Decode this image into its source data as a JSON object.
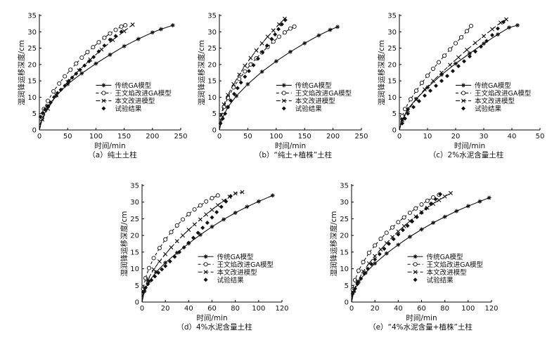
{
  "chart_data": [
    {
      "type": "line",
      "caption": "（a）纯土土柱",
      "xlabel": "时间/min",
      "ylabel": "湿润锋运移深度/cm",
      "xlim": [
        0,
        250
      ],
      "ylim": [
        0,
        35
      ],
      "xticks": [
        0,
        50,
        100,
        150,
        200,
        250
      ],
      "yticks": [
        0,
        5,
        10,
        15,
        20,
        25,
        30,
        35
      ],
      "legend_position": "lower-right",
      "series": [
        {
          "name": "传统GA模型",
          "style": "solid-star",
          "x": [
            0,
            5,
            15,
            30,
            50,
            75,
            100,
            125,
            150,
            175,
            200,
            215,
            236
          ],
          "y": [
            0,
            3.5,
            7.2,
            10.5,
            14.0,
            17.3,
            20.3,
            23.0,
            25.6,
            27.8,
            29.8,
            30.8,
            32.0
          ]
        },
        {
          "name": "王文焰改进GA模型",
          "style": "dashed-circle",
          "x": [
            0,
            3,
            8,
            15,
            25,
            35,
            45,
            55,
            65,
            75,
            85,
            95,
            105,
            115,
            125,
            135,
            145,
            152
          ],
          "y": [
            0,
            3.5,
            6.4,
            8.9,
            11.8,
            14.2,
            16.4,
            18.4,
            20.3,
            22.1,
            23.8,
            25.3,
            26.8,
            28.2,
            29.5,
            30.6,
            31.6,
            32.0
          ]
        },
        {
          "name": "本文改进模型",
          "style": "dashed-x",
          "x": [
            0,
            5,
            15,
            30,
            50,
            70,
            90,
            110,
            130,
            150,
            165
          ],
          "y": [
            0,
            3.2,
            6.5,
            10.6,
            14.6,
            18.2,
            21.5,
            24.6,
            27.5,
            30.2,
            32.2
          ]
        },
        {
          "name": "试验结果",
          "style": "diamond",
          "x": [
            2,
            6,
            10,
            15,
            20,
            26,
            32,
            38,
            45,
            52,
            58,
            65,
            72,
            80,
            88,
            96,
            105,
            115,
            125,
            135,
            145
          ],
          "y": [
            4.0,
            5.2,
            6.3,
            7.3,
            8.4,
            10.0,
            11.3,
            12.3,
            13.5,
            15.0,
            16.0,
            17.2,
            18.4,
            19.7,
            21.0,
            22.3,
            24.0,
            25.8,
            27.6,
            28.7,
            30.0
          ]
        }
      ]
    },
    {
      "type": "line",
      "caption": "（b）“纯土+植株”土柱",
      "xlabel": "时间/min",
      "ylabel": "湿润锋运移深度/cm",
      "xlim": [
        0,
        250
      ],
      "ylim": [
        0,
        35
      ],
      "xticks": [
        0,
        50,
        100,
        150,
        200,
        250
      ],
      "yticks": [
        0,
        5,
        10,
        15,
        20,
        25,
        30,
        35
      ],
      "legend_position": "lower-right",
      "series": [
        {
          "name": "传统GA模型",
          "style": "solid-star",
          "x": [
            0,
            5,
            15,
            30,
            50,
            75,
            100,
            125,
            150,
            175,
            195,
            208
          ],
          "y": [
            0,
            3.5,
            7.0,
            10.4,
            14.0,
            17.8,
            21.0,
            23.9,
            26.5,
            28.9,
            30.6,
            31.5
          ]
        },
        {
          "name": "王文焰改进GA模型",
          "style": "dashed-circle",
          "x": [
            0,
            3,
            8,
            15,
            25,
            35,
            45,
            55,
            65,
            75,
            85,
            95,
            105,
            115,
            125,
            132
          ],
          "y": [
            0,
            3.8,
            7.0,
            9.8,
            13.0,
            15.6,
            17.9,
            20.0,
            21.9,
            23.7,
            25.4,
            27.0,
            28.5,
            29.8,
            31.0,
            31.6
          ]
        },
        {
          "name": "本文改进模型",
          "style": "dashed-x",
          "x": [
            0,
            3,
            8,
            15,
            25,
            35,
            45,
            55,
            65,
            75,
            85,
            95,
            105,
            115
          ],
          "y": [
            0,
            4.6,
            7.8,
            10.7,
            14.0,
            16.9,
            19.6,
            22.0,
            24.3,
            26.5,
            28.5,
            30.4,
            32.3,
            34.0
          ]
        },
        {
          "name": "试验结果",
          "style": "diamond",
          "x": [
            2,
            6,
            10,
            15,
            20,
            26,
            32,
            38,
            45,
            52,
            60,
            68,
            76,
            84,
            92,
            98,
            104,
            110,
            116
          ],
          "y": [
            2.0,
            3.5,
            5.0,
            7.0,
            9.0,
            11.0,
            12.8,
            14.5,
            16.3,
            18.0,
            19.8,
            21.8,
            23.8,
            25.8,
            27.8,
            29.2,
            30.8,
            32.3,
            33.6
          ]
        }
      ]
    },
    {
      "type": "line",
      "caption": "（c）2%水泥含量土柱",
      "xlabel": "时间/min",
      "ylabel": "湿润锋运移深度/cm",
      "xlim": [
        0,
        50
      ],
      "ylim": [
        0,
        35
      ],
      "xticks": [
        0,
        10,
        20,
        30,
        40,
        50
      ],
      "yticks": [
        0,
        5,
        10,
        15,
        20,
        25,
        30,
        35
      ],
      "legend_position": "lower-right",
      "series": [
        {
          "name": "传统GA模型",
          "style": "solid-star",
          "x": [
            0,
            1,
            3,
            6,
            10,
            15,
            20,
            25,
            30,
            35,
            39,
            42
          ],
          "y": [
            0,
            3.2,
            6.4,
            9.5,
            13.0,
            16.9,
            20.3,
            23.4,
            26.4,
            29.2,
            31.3,
            32.0
          ]
        },
        {
          "name": "王文焰改进GA模型",
          "style": "dashed-circle",
          "x": [
            0,
            1,
            2,
            4,
            6,
            8,
            10,
            12,
            14,
            16,
            18,
            20,
            22,
            24,
            25.5
          ],
          "y": [
            0,
            4.2,
            6.4,
            9.4,
            12.0,
            14.4,
            16.6,
            18.7,
            20.7,
            22.7,
            24.6,
            26.5,
            28.3,
            30.2,
            31.8
          ]
        },
        {
          "name": "本文改进模型",
          "style": "dashed-x",
          "x": [
            0,
            1,
            3,
            6,
            9,
            12,
            15,
            18,
            21,
            24,
            27,
            30,
            33,
            36,
            38
          ],
          "y": [
            0,
            3.0,
            6.0,
            9.4,
            12.4,
            15.0,
            17.5,
            19.9,
            22.2,
            24.5,
            26.6,
            28.7,
            30.8,
            32.8,
            33.8
          ]
        },
        {
          "name": "试验结果",
          "style": "diamond",
          "x": [
            1,
            2,
            3,
            5,
            7,
            9,
            11,
            13,
            15,
            17,
            19,
            21,
            23,
            25,
            27,
            29,
            31,
            33,
            35,
            37
          ],
          "y": [
            2.0,
            3.5,
            5.0,
            7.0,
            8.8,
            10.5,
            12.0,
            13.5,
            15.0,
            16.5,
            18.0,
            19.5,
            21.0,
            22.5,
            24.0,
            25.5,
            27.2,
            29.0,
            31.0,
            33.0
          ]
        }
      ]
    },
    {
      "type": "line",
      "caption": "（d）4%水泥含量土柱",
      "xlabel": "时间/min",
      "ylabel": "湿润锋运移深度/cm",
      "xlim": [
        0,
        120
      ],
      "ylim": [
        0,
        35
      ],
      "xticks": [
        0,
        20,
        40,
        60,
        80,
        100,
        120
      ],
      "yticks": [
        0,
        5,
        10,
        15,
        20,
        25,
        30,
        35
      ],
      "legend_position": "lower-right",
      "series": [
        {
          "name": "传统GA模型",
          "style": "solid-star",
          "x": [
            0,
            2,
            6,
            12,
            20,
            30,
            40,
            50,
            60,
            70,
            80,
            90,
            100,
            112
          ],
          "y": [
            0,
            3.2,
            6.2,
            9.0,
            11.8,
            14.8,
            17.6,
            20.2,
            22.6,
            24.8,
            26.8,
            28.6,
            30.2,
            32.0
          ]
        },
        {
          "name": "王文焰改进GA模型",
          "style": "dashed-circle",
          "x": [
            0,
            1,
            3,
            6,
            10,
            15,
            20,
            25,
            30,
            35,
            40,
            45,
            50,
            55,
            60,
            65
          ],
          "y": [
            0,
            4.0,
            7.2,
            10.2,
            13.2,
            16.2,
            18.8,
            21.0,
            23.0,
            24.8,
            26.4,
            27.8,
            29.0,
            30.2,
            31.2,
            32.0
          ]
        },
        {
          "name": "本文改进模型",
          "style": "dashed-x",
          "x": [
            0,
            2,
            5,
            10,
            15,
            20,
            25,
            30,
            35,
            40,
            45,
            50,
            55,
            60,
            65,
            70,
            75,
            80,
            86
          ],
          "y": [
            0,
            3.8,
            6.8,
            9.8,
            12.2,
            14.4,
            16.4,
            18.3,
            20.0,
            21.7,
            23.3,
            24.8,
            26.3,
            27.7,
            29.1,
            30.4,
            31.6,
            32.6,
            33.0
          ]
        },
        {
          "name": "试验结果",
          "style": "diamond",
          "x": [
            1,
            3,
            5,
            8,
            11,
            14,
            17,
            20,
            24,
            28,
            32,
            36,
            40,
            44,
            48,
            52,
            56,
            60,
            64,
            68,
            72,
            76
          ],
          "y": [
            3.0,
            4.3,
            5.4,
            6.6,
            7.7,
            8.8,
            9.8,
            10.8,
            12.2,
            13.6,
            15.0,
            16.4,
            17.8,
            19.3,
            20.8,
            22.3,
            23.8,
            25.4,
            27.0,
            28.6,
            30.2,
            31.8
          ]
        }
      ]
    },
    {
      "type": "line",
      "caption": "（e）“4%水泥含量+植株”土柱",
      "xlabel": "时间/min",
      "ylabel": "湿润锋运移深度/cm",
      "xlim": [
        0,
        120
      ],
      "ylim": [
        0,
        35
      ],
      "xticks": [
        0,
        20,
        40,
        60,
        80,
        100,
        120
      ],
      "yticks": [
        0,
        5,
        10,
        15,
        20,
        25,
        30,
        35
      ],
      "legend_position": "lower-right",
      "series": [
        {
          "name": "传统GA模型",
          "style": "solid-star",
          "x": [
            0,
            2,
            6,
            12,
            20,
            30,
            40,
            50,
            60,
            70,
            80,
            90,
            100,
            110,
            118
          ],
          "y": [
            0,
            3.2,
            6.0,
            8.8,
            11.6,
            14.6,
            17.2,
            19.6,
            21.8,
            23.8,
            25.6,
            27.3,
            28.8,
            30.2,
            31.3
          ]
        },
        {
          "name": "王文焰改进GA模型",
          "style": "dashed-circle",
          "x": [
            0,
            1,
            3,
            6,
            10,
            15,
            20,
            25,
            30,
            35,
            40,
            45,
            50,
            55,
            60,
            65,
            70,
            75
          ],
          "y": [
            0,
            3.8,
            6.6,
            9.4,
            12.0,
            14.8,
            17.0,
            19.0,
            20.8,
            22.4,
            24.0,
            25.4,
            26.8,
            28.1,
            29.3,
            30.4,
            31.4,
            32.2
          ]
        },
        {
          "name": "本文改进模型",
          "style": "dashed-x",
          "x": [
            0,
            2,
            5,
            10,
            15,
            20,
            25,
            30,
            35,
            40,
            45,
            50,
            55,
            60,
            65,
            70,
            75,
            80,
            85
          ],
          "y": [
            0,
            3.5,
            6.2,
            9.2,
            11.6,
            13.8,
            15.8,
            17.7,
            19.5,
            21.2,
            22.8,
            24.3,
            25.7,
            27.0,
            28.3,
            29.5,
            30.6,
            31.7,
            32.7
          ]
        },
        {
          "name": "试验结果",
          "style": "diamond",
          "x": [
            1,
            3,
            5,
            8,
            11,
            14,
            17,
            20,
            24,
            28,
            32,
            36,
            40,
            44,
            48,
            52,
            56,
            60,
            64,
            68,
            72,
            76
          ],
          "y": [
            2.5,
            4.0,
            5.4,
            7.0,
            8.5,
            10.0,
            11.4,
            12.8,
            14.4,
            16.0,
            17.5,
            18.9,
            20.3,
            21.6,
            22.9,
            24.2,
            25.5,
            26.8,
            28.1,
            29.5,
            30.9,
            32.4
          ]
        }
      ]
    }
  ]
}
